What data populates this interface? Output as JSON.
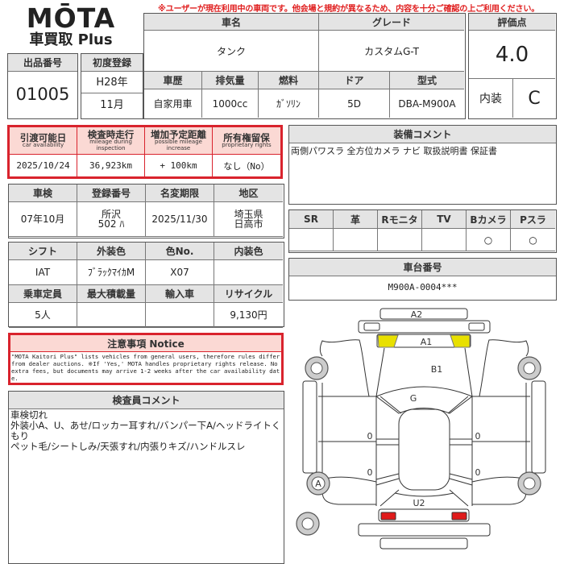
{
  "notice_banner": "※ユーザーが現在利用中の車両です。他会場と規約が異なるため、内容を十分ご確認の上ご利用ください。",
  "logo": {
    "brand": "MŌTA",
    "sub": "車買取 Plus"
  },
  "listing": {
    "number_label": "出品番号",
    "number": "01005",
    "first_reg_label": "初度登録",
    "first_reg_year": "H28年",
    "first_reg_month": "11月"
  },
  "vehicle": {
    "name_label": "車名",
    "name": "タンク",
    "grade_label": "グレード",
    "grade": "カスタムG-T",
    "history_label": "車歴",
    "history": "自家用車",
    "displacement_label": "排気量",
    "displacement": "1000cc",
    "fuel_label": "燃料",
    "fuel": "ｶﾞｿﾘﾝ",
    "door_label": "ドア",
    "door": "5D",
    "model_label": "型式",
    "model": "DBA-M900A"
  },
  "rating": {
    "label": "評価点",
    "score": "4.0",
    "interior_label": "内装",
    "interior": "C"
  },
  "availability": {
    "cols": [
      {
        "label": "引渡可能日",
        "sub": "car availability",
        "value": "2025/10/24"
      },
      {
        "label": "検査時走行",
        "sub": "mileage during inspection",
        "value": "36,923km"
      },
      {
        "label": "増加予定距離",
        "sub": "possible mileage increase",
        "value": "+ 100km"
      },
      {
        "label": "所有権留保",
        "sub": "proprietary rights",
        "value": "なし（No）"
      }
    ]
  },
  "registration": {
    "cols": [
      {
        "label": "車検",
        "value": "07年10月"
      },
      {
        "label": "登録番号",
        "value": "所沢\n502 ﾊ"
      },
      {
        "label": "名変期限",
        "value": "2025/11/30"
      },
      {
        "label": "地区",
        "value": "埼玉県\n日高市"
      }
    ]
  },
  "specs": {
    "row1": [
      {
        "label": "シフト",
        "value": "IAT"
      },
      {
        "label": "外装色",
        "value": "ﾌﾞﾗｯｸﾏｲｶM"
      },
      {
        "label": "色No.",
        "value": "X07"
      },
      {
        "label": "内装色",
        "value": ""
      }
    ],
    "row2": [
      {
        "label": "乗車定員",
        "value": "5人"
      },
      {
        "label": "最大積載量",
        "value": ""
      },
      {
        "label": "輸入車",
        "value": ""
      },
      {
        "label": "リサイクル",
        "value": "9,130円"
      }
    ]
  },
  "notice": {
    "title": "注意事項 Notice",
    "text": "\"MOTA Kaitori Plus\" lists vehicles from general users, therefore rules differ from dealer auctions. ※If 'Yes,' MOTA handles proprietary rights release. No extra fees, but documents may arrive 1-2 weeks after the car availability date."
  },
  "inspector": {
    "title": "検査員コメント",
    "lines": [
      "車検切れ",
      "外装小A、U、あせ/ロッカー耳すれ/バンパー下A/ヘッドライトくもり",
      "ペット毛/シートしみ/天張すれ/内張りキズ/ハンドルスレ"
    ]
  },
  "equipment": {
    "title": "装備コメント",
    "text": "両側パワスラ 全方位カメラ ナビ 取扱説明書 保証書"
  },
  "options": {
    "cols": [
      {
        "label": "SR",
        "value": ""
      },
      {
        "label": "革",
        "value": ""
      },
      {
        "label": "Rモニタ",
        "value": ""
      },
      {
        "label": "TV",
        "value": ""
      },
      {
        "label": "Bカメラ",
        "value": "○"
      },
      {
        "label": "Pスラ",
        "value": "○"
      }
    ]
  },
  "chassis": {
    "label": "車台番号",
    "value": "M900A-0004***"
  },
  "diagram": {
    "labels": {
      "a2": "A2",
      "a1": "A1",
      "b1": "B1",
      "g": "G",
      "u2": "U2",
      "wheel": "A",
      "z1": "0",
      "z2": "0",
      "z3": "0",
      "z4": "0"
    },
    "colors": {
      "yellow": "#e8e000",
      "red": "#e01b1b"
    }
  }
}
